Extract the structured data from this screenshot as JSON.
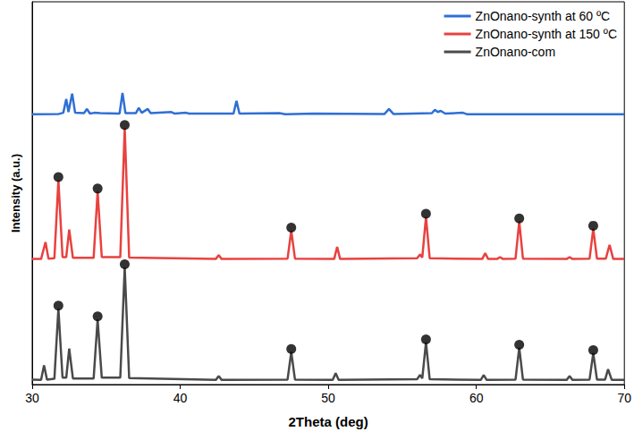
{
  "chart_data": {
    "type": "line",
    "xlabel": "2Theta (deg)",
    "ylabel": "Intensity (a.u.)",
    "xlim": [
      30,
      70
    ],
    "xticks": [
      30,
      40,
      50,
      60,
      70
    ],
    "ylim": [
      0,
      100
    ],
    "tick_labels": "x",
    "legend": "upper right",
    "series": [
      {
        "name": "ZnOnano-synth at 60 ºC",
        "color": "#2f6fd6",
        "x": [
          30,
          31.8,
          32.1,
          32.3,
          32.45,
          32.7,
          32.9,
          33.5,
          33.7,
          33.9,
          34.2,
          34.6,
          35.9,
          36.1,
          36.3,
          37.0,
          37.2,
          37.4,
          37.8,
          38.0,
          39.4,
          39.6,
          40.4,
          40.6,
          43.6,
          43.8,
          44.0,
          46.7,
          47.1,
          49.0,
          53.8,
          54.1,
          54.4,
          57.0,
          57.2,
          57.4,
          57.6,
          57.9,
          59.1,
          59.4,
          70
        ],
        "values": [
          70.6,
          70.7,
          71,
          74.6,
          71.2,
          76,
          71,
          70.9,
          72,
          70.8,
          71,
          70.9,
          70.8,
          76.2,
          70.9,
          70.9,
          72.3,
          71,
          72,
          70.9,
          71.2,
          70.8,
          71,
          70.8,
          70.8,
          74.1,
          70.8,
          70.9,
          70.6,
          70.8,
          70.7,
          72,
          70.7,
          70.9,
          71.8,
          71.2,
          71.5,
          70.8,
          71,
          70.6,
          70.6
        ]
      },
      {
        "name": "ZnOnano-synth at 150 ºC",
        "color": "#e8423f",
        "x": [
          30,
          30.6,
          30.9,
          31.1,
          31.5,
          31.77,
          32.05,
          32.3,
          32.5,
          32.75,
          34.15,
          34.42,
          34.7,
          35.95,
          36.25,
          36.55,
          42.4,
          42.6,
          42.8,
          47.25,
          47.5,
          47.75,
          50.4,
          50.6,
          50.8,
          56.0,
          56.2,
          56.35,
          56.6,
          56.85,
          60.4,
          60.6,
          60.8,
          61.4,
          61.6,
          61.8,
          62.65,
          62.9,
          63.15,
          66.1,
          66.3,
          66.5,
          67.65,
          67.9,
          68.15,
          68.75,
          69,
          69.25,
          70
        ],
        "values": [
          32.8,
          32.8,
          37.2,
          32.9,
          33,
          53.4,
          33.3,
          33.3,
          40.5,
          33.1,
          33.1,
          50.4,
          33.3,
          33.3,
          67,
          33.2,
          32.8,
          33.8,
          32.8,
          32.9,
          40.2,
          32.9,
          32.8,
          36,
          32.8,
          33,
          34,
          33.2,
          43.8,
          33,
          32.8,
          34.3,
          32.8,
          32.8,
          33.3,
          32.8,
          32.9,
          42.6,
          32.9,
          32.8,
          33.3,
          32.8,
          32.9,
          40.7,
          32.9,
          32.9,
          36.5,
          32.8,
          32.8
        ]
      },
      {
        "name": "ZnOnano-com",
        "color": "#4a4a4a",
        "x": [
          30,
          30.6,
          30.8,
          31.0,
          31.5,
          31.77,
          32.05,
          32.3,
          32.5,
          32.75,
          34.15,
          34.42,
          34.7,
          35.95,
          36.25,
          36.55,
          42.4,
          42.6,
          42.8,
          47.25,
          47.5,
          47.75,
          50.3,
          50.5,
          50.7,
          56.0,
          56.2,
          56.35,
          56.6,
          56.85,
          60.3,
          60.5,
          60.7,
          62.65,
          62.9,
          63.15,
          66.1,
          66.3,
          66.5,
          67.65,
          67.9,
          68.15,
          68.7,
          68.9,
          69.15,
          70
        ],
        "values": [
          1.3,
          1.2,
          5,
          1.3,
          1.5,
          19.8,
          1.8,
          1.8,
          9.4,
          1.6,
          1.6,
          17,
          1.8,
          1.8,
          30.6,
          1.7,
          1.2,
          2.2,
          1.2,
          1.3,
          8.5,
          1.3,
          1.2,
          3,
          1.2,
          1.4,
          2.5,
          1.6,
          11,
          1.4,
          1.2,
          2.5,
          1.2,
          1.3,
          9.6,
          1.3,
          1.2,
          2.2,
          1.2,
          1.3,
          8.2,
          1.3,
          1.3,
          4,
          1.2,
          1.2
        ]
      },
      {
        "type": "scatter",
        "color": "#000000",
        "marker": "circle",
        "x": [
          31.77,
          34.42,
          36.25,
          47.5,
          56.6,
          62.9,
          67.9,
          31.77,
          34.42,
          36.25,
          47.5,
          56.6,
          62.9,
          67.9
        ],
        "values": [
          54.2,
          51.2,
          67.8,
          41.0,
          44.6,
          43.4,
          41.5,
          20.6,
          17.8,
          31.4,
          9.3,
          11.8,
          10.4,
          9.0
        ]
      }
    ]
  }
}
